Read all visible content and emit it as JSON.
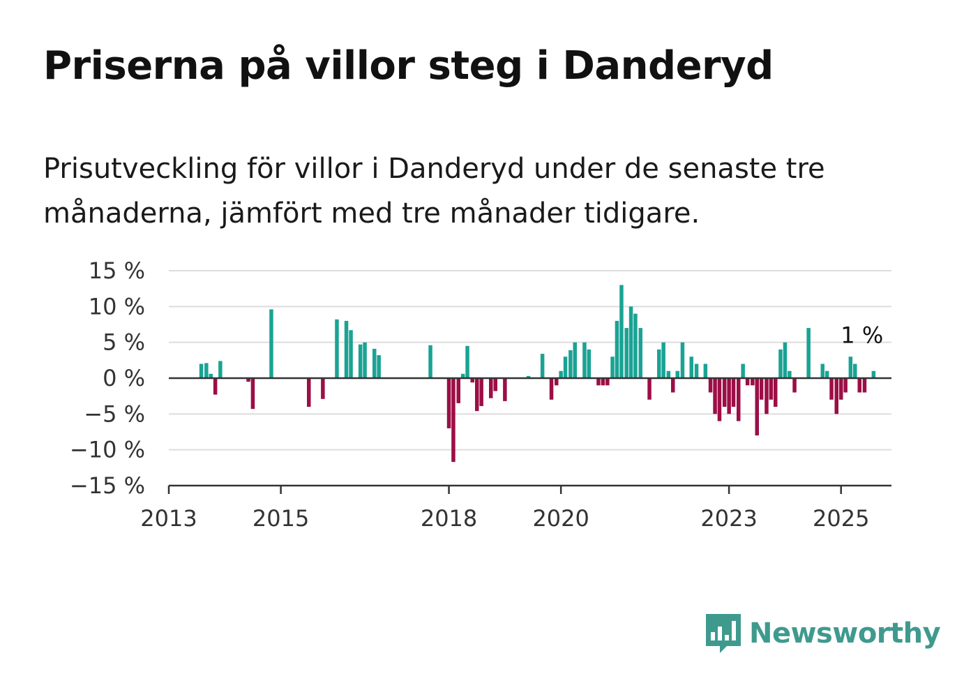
{
  "title": "Priserna på villor steg i Danderyd",
  "subtitle": "Prisutveckling för villor i Danderyd under de senaste tre månaderna, jämfört med tre månader tidigare.",
  "brand": {
    "name": "Newsworthy",
    "icon": "bar-chart-speech-bubble-icon",
    "color": "#3f9a8e"
  },
  "colors": {
    "positive": "#1aa394",
    "negative": "#9c0e46",
    "grid": "#dddddd",
    "axis": "#333333"
  },
  "chart_data": {
    "type": "bar",
    "title": "",
    "xlabel": "",
    "ylabel": "",
    "ylim": [
      -15,
      15
    ],
    "y_ticks": [
      15,
      10,
      5,
      0,
      -5,
      -10,
      -15
    ],
    "y_tick_labels": [
      "15 %",
      "10 %",
      "5 %",
      "0 %",
      "−5 %",
      "−10 %",
      "−15 %"
    ],
    "x_ticks": [
      2013,
      2015,
      2018,
      2020,
      2023,
      2025
    ],
    "x_tick_labels": [
      "2013",
      "2015",
      "2018",
      "2020",
      "2023",
      "2025"
    ],
    "xlim": [
      2013.0,
      2025.9
    ],
    "grid": true,
    "annotation": {
      "text": "1 %",
      "x": 2025.1,
      "y": 2
    },
    "series": [
      {
        "values": [
          {
            "x": 2013.58,
            "y": 2
          },
          {
            "x": 2013.67,
            "y": 2.1
          },
          {
            "x": 2013.75,
            "y": 0.6
          },
          {
            "x": 2013.83,
            "y": -2.3
          },
          {
            "x": 2013.92,
            "y": 2.4
          },
          {
            "x": 2014.42,
            "y": -0.5
          },
          {
            "x": 2014.5,
            "y": -4.3
          },
          {
            "x": 2014.83,
            "y": 9.6
          },
          {
            "x": 2015.5,
            "y": -4
          },
          {
            "x": 2015.75,
            "y": -2.9
          },
          {
            "x": 2016.0,
            "y": 8.2
          },
          {
            "x": 2016.17,
            "y": 8
          },
          {
            "x": 2016.25,
            "y": 6.7
          },
          {
            "x": 2016.42,
            "y": 4.7
          },
          {
            "x": 2016.5,
            "y": 5
          },
          {
            "x": 2016.67,
            "y": 4.1
          },
          {
            "x": 2016.75,
            "y": 3.2
          },
          {
            "x": 2017.67,
            "y": 4.6
          },
          {
            "x": 2018.0,
            "y": -7
          },
          {
            "x": 2018.0,
            "y": 0
          },
          {
            "x": 2017.67,
            "y": 0
          },
          {
            "x": 2018.0,
            "y": 0
          }
        ]
      }
    ]
  }
}
